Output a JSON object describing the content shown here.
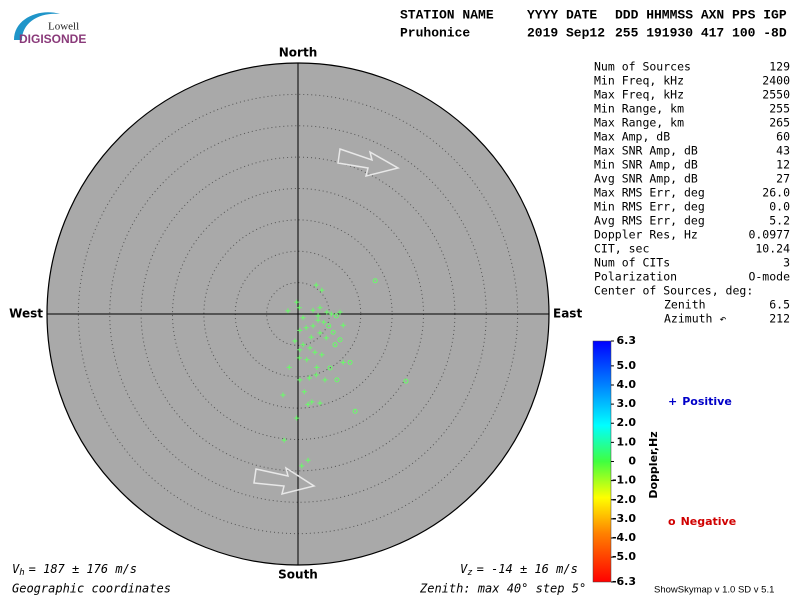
{
  "header": {
    "logo_top": "Lowell",
    "logo_bottom": "DIGISONDE",
    "columns": [
      "STATION NAME",
      "YYYY DATE",
      "DDD HHMMSS AXN PPS IGP"
    ],
    "values": [
      "Pruhonice",
      "2019 Sep12",
      "255 191930 417 100 -8D"
    ]
  },
  "stats": [
    [
      "Num of Sources",
      "129"
    ],
    [
      "Min Freq, kHz",
      "2400"
    ],
    [
      "Max Freq, kHz",
      "2550"
    ],
    [
      "Min Range, km",
      "255"
    ],
    [
      "Max Range, km",
      "265"
    ],
    [
      "Max Amp, dB",
      "60"
    ],
    [
      "Max SNR Amp, dB",
      "43"
    ],
    [
      "Min SNR Amp, dB",
      "12"
    ],
    [
      "Avg SNR Amp, dB",
      "27"
    ],
    [
      "Max RMS Err, deg",
      "26.0"
    ],
    [
      "Min RMS Err, deg",
      "0.0"
    ],
    [
      "Avg RMS Err, deg",
      "5.2"
    ],
    [
      "Doppler Res, Hz",
      "0.0977"
    ],
    [
      "CIT, sec",
      "10.24"
    ],
    [
      "Num of CITs",
      "3"
    ],
    [
      "Polarization",
      "O-mode"
    ],
    [
      "Center of Sources, deg:"
    ],
    [
      "Zenith",
      "6.5"
    ],
    [
      "Azimuth ↶",
      "212"
    ]
  ],
  "chart_data": {
    "type": "skymap",
    "compass": {
      "north": "North",
      "east": "East",
      "south": "South",
      "west": "West"
    },
    "rlim": [
      0,
      40
    ],
    "rticks": [
      5,
      10,
      15,
      20,
      25,
      30,
      35,
      40
    ],
    "series": [
      {
        "name": "Positive",
        "marker": "+",
        "color": "#66ff66",
        "legend_color": "#0000c8",
        "x": [
          2.9,
          3.8,
          -0.2,
          0.2,
          -1.6,
          2.4,
          3.5,
          4.6,
          5.3,
          6.7,
          3.2,
          4.1,
          2.4,
          1.3,
          0.3,
          3.5,
          7.2,
          2.1,
          4.5,
          0.8,
          1.9,
          0.3,
          2.7,
          3.8,
          7.2,
          1.4,
          0.2,
          -1.4,
          3.0,
          4.3,
          2.9,
          1.8,
          0.3,
          1.0,
          -2.4,
          1.6,
          2.2,
          3.5,
          -0.2,
          -2.2,
          1.6,
          0.6,
          -0.5,
          0.8,
          3.2
        ],
        "y": [
          4.6,
          3.8,
          1.9,
          1.0,
          0.5,
          0.6,
          1.0,
          0.3,
          0,
          0.3,
          -1.0,
          -1.3,
          -1.9,
          -2.2,
          -2.6,
          -3.0,
          -1.8,
          -3.7,
          -3.8,
          -4.9,
          -5.4,
          -5.7,
          -6.1,
          -6.5,
          -7.7,
          -7.3,
          -7.0,
          -8.5,
          -8.5,
          -10.5,
          -9.7,
          -10.2,
          -10.5,
          -12.4,
          -12.9,
          -14.4,
          -14.0,
          -14.2,
          -16.6,
          -20.1,
          -23.3,
          -24.2,
          -4.3,
          -0.6,
          -0.3
        ]
      },
      {
        "name": "Negative",
        "marker": "o",
        "color": "#66ff66",
        "legend_color": "#d00000",
        "x": [
          12.3,
          17.2,
          9.1,
          5.9,
          8.3,
          6.1,
          4.9,
          5.6,
          6.7,
          6.2,
          5.1
        ],
        "y": [
          5.3,
          -10.7,
          -15.5,
          -4.9,
          -7.7,
          -0.3,
          -1.9,
          -2.9,
          -4.1,
          -10.5,
          -8.6
        ]
      }
    ],
    "colorbar": {
      "label": "Doppler,Hz",
      "lim": [
        -6.3,
        6.3
      ],
      "ticks": [
        6.3,
        {
          "value": 5,
          "label": "5.0"
        },
        {
          "value": 4,
          "label": "4.0"
        },
        {
          "value": 3,
          "label": "3.0"
        },
        {
          "value": 2,
          "label": "2.0"
        },
        {
          "value": 1,
          "label": "1.0"
        },
        0,
        {
          "value": -1,
          "label": "-1.0"
        },
        {
          "value": -2,
          "label": "-2.0"
        },
        {
          "value": -3,
          "label": "-3.0"
        },
        {
          "value": -4,
          "label": "-4.0"
        },
        {
          "value": -5,
          "label": "-5.0"
        },
        -6.3
      ]
    }
  },
  "footer": {
    "vh_symbol": "V",
    "vh_sub": "h",
    "vh_text": "= 187 ± 176 m/s",
    "vz_symbol": "V",
    "vz_sub": "z",
    "vz_text": "= -14 ± 16 m/s",
    "coords": "Geographic coordinates",
    "zenith": "Zenith: max 40°  step 5°",
    "version": "ShowSkymap v 1.0  SD v 5.1"
  }
}
